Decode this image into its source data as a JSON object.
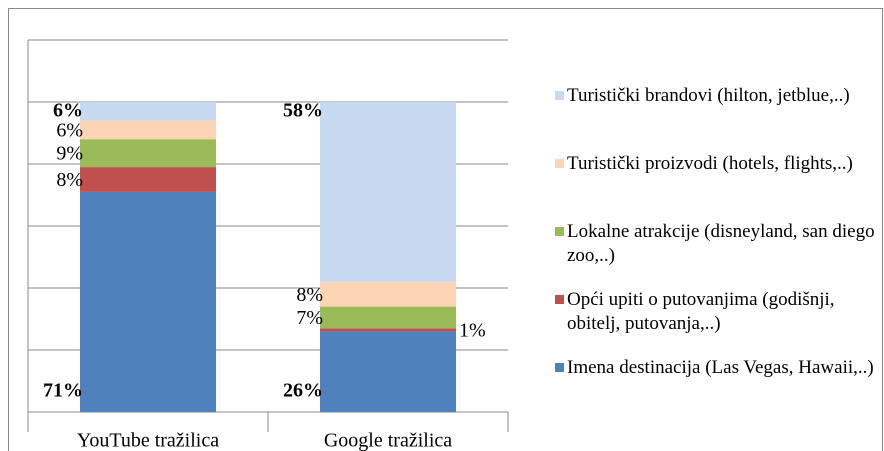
{
  "chart_data": {
    "type": "stacked_bar",
    "categories": [
      "YouTube tražilica",
      "Google tražilica"
    ],
    "series": [
      {
        "name": "Imena destinacija (Las Vegas, Hawaii,..)",
        "color": "#4f81bd",
        "values": [
          71,
          26
        ],
        "value_labels": [
          "71%",
          "26%"
        ]
      },
      {
        "name": "Opći upiti o putovanjima (godišnji, obitelj, putovanja,..)",
        "color": "#c0504d",
        "values": [
          8,
          1
        ],
        "value_labels": [
          "8%",
          "1%"
        ]
      },
      {
        "name": "Lokalne atrakcije (disneyland, san diego zoo,..)",
        "color": "#9bbb59",
        "values": [
          9,
          7
        ],
        "value_labels": [
          "9%",
          "7%"
        ]
      },
      {
        "name": "Turistički proizvodi (hotels, flights,..)",
        "color": "#fcd5b5",
        "values": [
          6,
          8
        ],
        "value_labels": [
          "6%",
          "8%"
        ]
      },
      {
        "name": "Turistički brandovi (hilton, jetblue,..)",
        "color": "#c6d9f1",
        "values": [
          6,
          58
        ],
        "value_labels": [
          "6%",
          "58%"
        ]
      }
    ],
    "ylim": [
      0,
      120
    ],
    "yticks": [
      0,
      20,
      40,
      60,
      80,
      100,
      120
    ],
    "grid": true,
    "legend": "right"
  }
}
